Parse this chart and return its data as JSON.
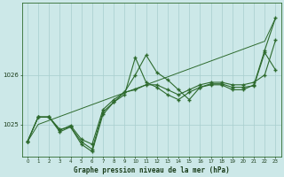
{
  "xlabel": "Graphe pression niveau de la mer (hPa)",
  "hours": [
    0,
    1,
    2,
    3,
    4,
    5,
    6,
    7,
    8,
    9,
    10,
    11,
    12,
    13,
    14,
    15,
    16,
    17,
    18,
    19,
    20,
    21,
    22,
    23
  ],
  "line_main": [
    1024.65,
    1025.15,
    1025.15,
    1024.85,
    1024.95,
    1024.65,
    1024.5,
    1025.25,
    1025.45,
    1025.6,
    1026.35,
    1025.85,
    1025.75,
    1025.6,
    1025.5,
    1025.65,
    1025.75,
    1025.8,
    1025.8,
    1025.7,
    1025.7,
    1025.8,
    1026.5,
    1027.15
  ],
  "line_smooth": [
    1024.65,
    1025.15,
    1025.15,
    1024.88,
    1024.98,
    1024.7,
    1024.6,
    1025.3,
    1025.5,
    1025.65,
    1025.7,
    1025.8,
    1025.8,
    1025.7,
    1025.6,
    1025.7,
    1025.8,
    1025.85,
    1025.85,
    1025.8,
    1025.8,
    1025.85,
    1026.0,
    1026.7
  ],
  "line_spike": [
    1024.65,
    1025.15,
    1025.15,
    1024.9,
    1024.95,
    1024.6,
    1024.45,
    1025.2,
    1025.45,
    1025.65,
    1026.0,
    1026.4,
    1026.05,
    1025.9,
    1025.7,
    1025.5,
    1025.75,
    1025.82,
    1025.82,
    1025.75,
    1025.75,
    1025.78,
    1026.45,
    1026.1
  ],
  "line_straight": [
    1024.65,
    1025.0,
    1025.08,
    1025.16,
    1025.24,
    1025.32,
    1025.4,
    1025.48,
    1025.56,
    1025.64,
    1025.72,
    1025.8,
    1025.88,
    1025.96,
    1026.04,
    1026.12,
    1026.2,
    1026.28,
    1026.36,
    1026.44,
    1026.52,
    1026.6,
    1026.68,
    1027.15
  ],
  "line_color": "#2d6a2d",
  "bg_color": "#cce8e8",
  "grid_color": "#a8cece",
  "ylim": [
    1024.35,
    1027.45
  ],
  "ytick_vals": [
    1025,
    1026
  ],
  "xlim": [
    -0.5,
    23.5
  ]
}
